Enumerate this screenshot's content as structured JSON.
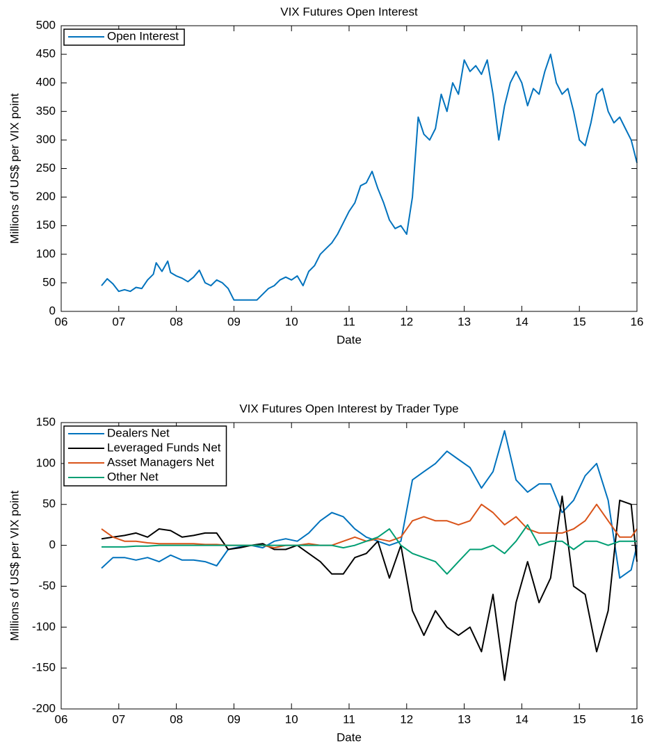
{
  "chart_data": [
    {
      "type": "line",
      "title": "VIX Futures Open Interest",
      "x_label": "Date",
      "y_label": "Millions of US$ per VIX point",
      "x": [
        6.7,
        6.8,
        6.9,
        7.0,
        7.1,
        7.2,
        7.3,
        7.4,
        7.5,
        7.6,
        7.65,
        7.75,
        7.85,
        7.9,
        8.0,
        8.1,
        8.2,
        8.3,
        8.4,
        8.5,
        8.6,
        8.7,
        8.8,
        8.9,
        9.0,
        9.2,
        9.4,
        9.5,
        9.6,
        9.7,
        9.8,
        9.9,
        10.0,
        10.1,
        10.2,
        10.3,
        10.4,
        10.5,
        10.6,
        10.7,
        10.8,
        10.9,
        11.0,
        11.1,
        11.2,
        11.3,
        11.4,
        11.5,
        11.6,
        11.7,
        11.8,
        11.9,
        12.0,
        12.1,
        12.2,
        12.3,
        12.4,
        12.5,
        12.6,
        12.7,
        12.8,
        12.9,
        13.0,
        13.1,
        13.2,
        13.3,
        13.4,
        13.5,
        13.6,
        13.7,
        13.8,
        13.9,
        14.0,
        14.1,
        14.2,
        14.3,
        14.4,
        14.5,
        14.6,
        14.7,
        14.8,
        14.9,
        15.0,
        15.1,
        15.2,
        15.3,
        15.4,
        15.5,
        15.6,
        15.7,
        15.8,
        15.9,
        16.0
      ],
      "series": [
        {
          "name": "Open Interest",
          "color": "#0072bd",
          "values": [
            45,
            57,
            48,
            35,
            38,
            35,
            42,
            40,
            55,
            65,
            85,
            70,
            88,
            68,
            62,
            58,
            52,
            60,
            72,
            50,
            45,
            55,
            50,
            40,
            20,
            20,
            20,
            30,
            40,
            45,
            55,
            60,
            55,
            62,
            45,
            70,
            80,
            100,
            110,
            120,
            135,
            155,
            175,
            190,
            220,
            225,
            245,
            215,
            190,
            160,
            145,
            150,
            135,
            200,
            340,
            310,
            300,
            320,
            380,
            350,
            400,
            380,
            440,
            420,
            430,
            415,
            440,
            380,
            300,
            360,
            400,
            420,
            400,
            360,
            390,
            380,
            420,
            450,
            400,
            380,
            390,
            350,
            300,
            290,
            330,
            380,
            390,
            350,
            330,
            340,
            320,
            300,
            260
          ]
        }
      ],
      "xlim": [
        6,
        16
      ],
      "xticks": [
        {
          "value": 6,
          "label": "06"
        },
        {
          "value": 7,
          "label": "07"
        },
        {
          "value": 8,
          "label": "08"
        },
        {
          "value": 9,
          "label": "09"
        },
        10,
        11,
        12,
        13,
        14,
        15,
        16
      ],
      "ylim": [
        0,
        500
      ],
      "yticks": [
        0,
        50,
        100,
        150,
        200,
        250,
        300,
        350,
        400,
        450,
        500
      ],
      "grid": false,
      "legend": "upper left"
    },
    {
      "type": "line",
      "title": "VIX Futures Open Interest by Trader Type",
      "x_label": "Date",
      "y_label": "Millions of US$ per VIX point",
      "x": [
        6.7,
        6.9,
        7.1,
        7.3,
        7.5,
        7.7,
        7.9,
        8.1,
        8.3,
        8.5,
        8.7,
        8.9,
        9.1,
        9.3,
        9.5,
        9.7,
        9.9,
        10.1,
        10.3,
        10.5,
        10.7,
        10.9,
        11.1,
        11.3,
        11.5,
        11.7,
        11.9,
        12.1,
        12.3,
        12.5,
        12.7,
        12.9,
        13.1,
        13.3,
        13.5,
        13.7,
        13.9,
        14.1,
        14.3,
        14.5,
        14.7,
        14.9,
        15.1,
        15.3,
        15.5,
        15.7,
        15.9,
        16.0
      ],
      "series": [
        {
          "name": "Dealers Net",
          "color": "#0072bd",
          "values": [
            -28,
            -15,
            -15,
            -18,
            -15,
            -20,
            -12,
            -18,
            -18,
            -20,
            -25,
            -5,
            -2,
            0,
            -3,
            5,
            8,
            5,
            15,
            30,
            40,
            35,
            20,
            10,
            5,
            0,
            5,
            80,
            90,
            100,
            115,
            105,
            95,
            70,
            90,
            140,
            80,
            65,
            75,
            75,
            40,
            55,
            85,
            100,
            55,
            -40,
            -30,
            0
          ]
        },
        {
          "name": "Leveraged Funds Net",
          "color": "#000000",
          "values": [
            8,
            10,
            12,
            15,
            10,
            20,
            18,
            10,
            12,
            15,
            15,
            -5,
            -3,
            0,
            2,
            -5,
            -5,
            0,
            -10,
            -20,
            -35,
            -35,
            -15,
            -10,
            5,
            -40,
            0,
            -80,
            -110,
            -80,
            -100,
            -110,
            -100,
            -130,
            -60,
            -165,
            -70,
            -20,
            -70,
            -40,
            60,
            -50,
            -60,
            -130,
            -80,
            55,
            50,
            -20
          ]
        },
        {
          "name": "Asset Managers Net",
          "color": "#d95319",
          "values": [
            20,
            10,
            5,
            5,
            3,
            2,
            2,
            2,
            2,
            1,
            1,
            0,
            0,
            0,
            0,
            -3,
            0,
            0,
            2,
            0,
            0,
            5,
            10,
            5,
            8,
            5,
            10,
            30,
            35,
            30,
            30,
            25,
            30,
            50,
            40,
            25,
            35,
            20,
            15,
            15,
            15,
            20,
            30,
            50,
            30,
            10,
            10,
            20
          ]
        },
        {
          "name": "Other Net",
          "color": "#009e73",
          "values": [
            -2,
            -2,
            -2,
            -1,
            -1,
            0,
            0,
            0,
            0,
            0,
            0,
            0,
            0,
            0,
            0,
            0,
            0,
            0,
            0,
            0,
            0,
            -3,
            0,
            5,
            10,
            20,
            0,
            -10,
            -15,
            -20,
            -35,
            -20,
            -5,
            -5,
            0,
            -10,
            5,
            25,
            0,
            5,
            5,
            -5,
            5,
            5,
            0,
            5,
            5,
            5
          ]
        }
      ],
      "xlim": [
        6,
        16
      ],
      "xticks": [
        {
          "value": 6,
          "label": "06"
        },
        {
          "value": 7,
          "label": "07"
        },
        {
          "value": 8,
          "label": "08"
        },
        {
          "value": 9,
          "label": "09"
        },
        10,
        11,
        12,
        13,
        14,
        15,
        16
      ],
      "ylim": [
        -200,
        150
      ],
      "yticks": [
        -200,
        -150,
        -100,
        -50,
        0,
        50,
        100,
        150
      ],
      "grid": false,
      "legend": "upper left"
    }
  ]
}
